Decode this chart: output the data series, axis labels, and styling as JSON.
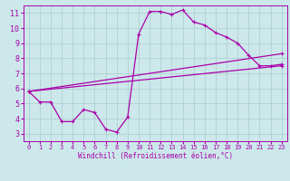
{
  "background_color": "#cce8ea",
  "grid_color": "#aacccc",
  "line_color": "#aa00aa",
  "xlim": [
    -0.5,
    23.5
  ],
  "ylim": [
    2.5,
    11.5
  ],
  "xlabel": "Windchill (Refroidissement éolien,°C)",
  "xticks": [
    0,
    1,
    2,
    3,
    4,
    5,
    6,
    7,
    8,
    9,
    10,
    11,
    12,
    13,
    14,
    15,
    16,
    17,
    18,
    19,
    20,
    21,
    22,
    23
  ],
  "yticks": [
    3,
    4,
    5,
    6,
    7,
    8,
    9,
    10,
    11
  ],
  "series1_x": [
    0,
    1,
    2,
    3,
    4,
    5,
    6,
    7,
    8,
    9,
    10,
    11,
    12,
    13,
    14,
    15,
    16,
    17,
    18,
    19,
    20,
    21,
    22,
    23
  ],
  "series1_y": [
    5.8,
    5.1,
    5.1,
    3.8,
    3.8,
    4.6,
    4.4,
    3.3,
    3.1,
    4.1,
    9.6,
    11.1,
    11.1,
    10.9,
    11.2,
    10.4,
    10.2,
    9.7,
    9.4,
    9.0,
    8.2,
    7.5,
    7.5,
    7.6
  ],
  "series2_x": [
    0,
    23
  ],
  "series2_y": [
    5.8,
    8.3
  ],
  "series3_x": [
    0,
    23
  ],
  "series3_y": [
    5.8,
    7.5
  ],
  "xlabel_fontsize": 5.5,
  "tick_fontsize_x": 5.0,
  "tick_fontsize_y": 6.0,
  "linewidth": 0.9,
  "markersize": 2.5
}
